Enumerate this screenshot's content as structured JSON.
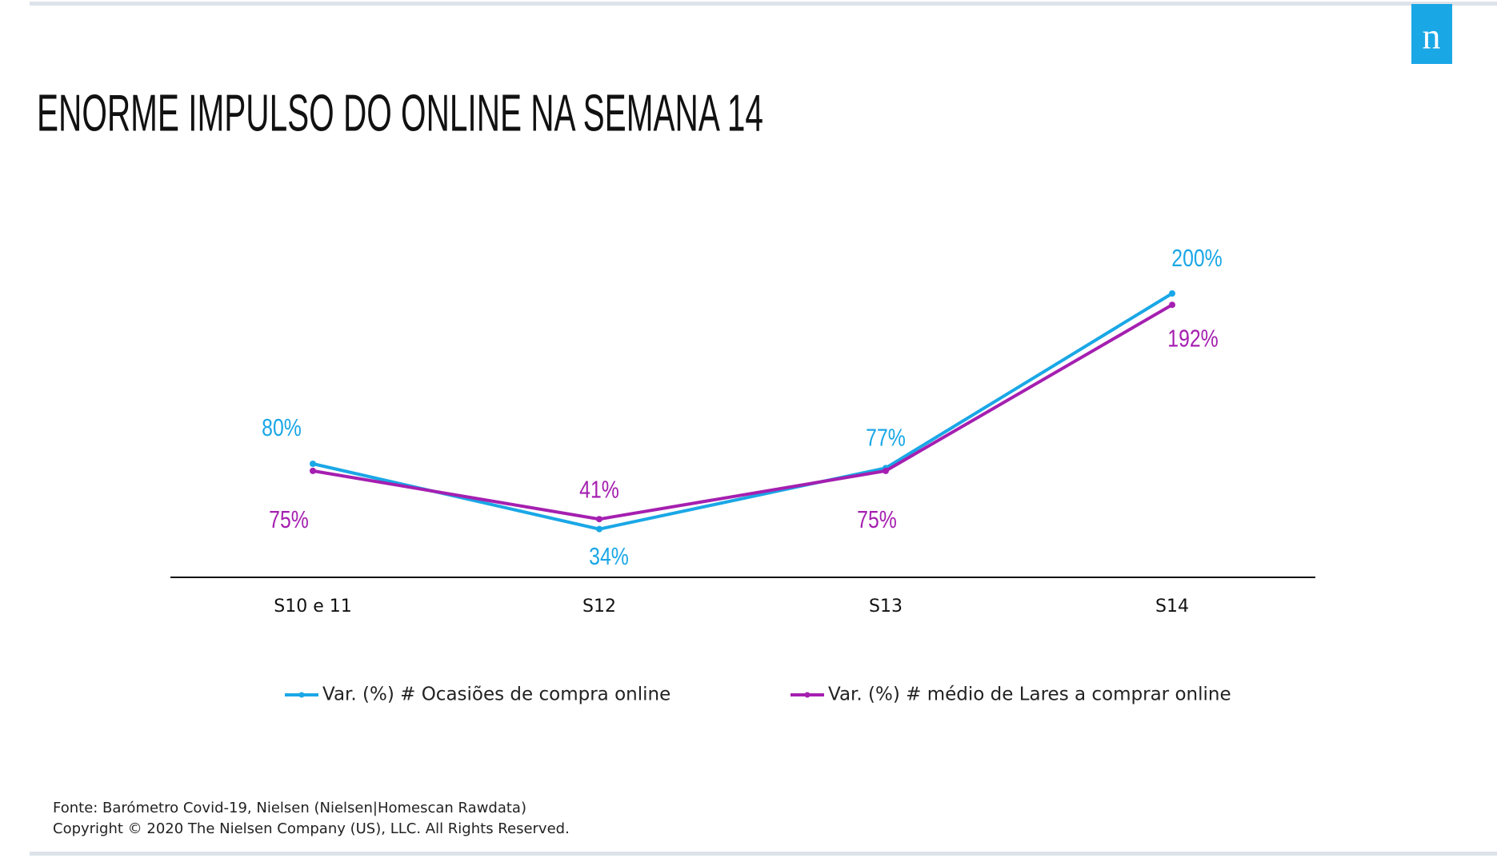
{
  "logo": "n",
  "chart_data": {
    "type": "line",
    "title": "ENORME IMPULSO DO ONLINE NA SEMANA 14",
    "categories": [
      "S10 e 11",
      "S12",
      "S13",
      "S14"
    ],
    "series": [
      {
        "name": "Var. (%) # Ocasiões de compra online",
        "color": "#1aa7e6",
        "values": [
          80,
          34,
          77,
          200
        ],
        "value_labels": [
          "80%",
          "34%",
          "77%",
          "200%"
        ]
      },
      {
        "name": "Var. (%) # médio de Lares a comprar online",
        "color": "#a51fb0",
        "values": [
          75,
          41,
          75,
          192
        ],
        "value_labels": [
          "75%",
          "41%",
          "75%",
          "192%"
        ]
      }
    ],
    "ylim": [
      0,
      200
    ],
    "notes": [
      "Fonte: Barómetro Covid-19, Nielsen (Nielsen|Homescan Rawdata)",
      "Copyright © 2020 The Nielsen Company (US), LLC. All Rights Reserved."
    ]
  }
}
